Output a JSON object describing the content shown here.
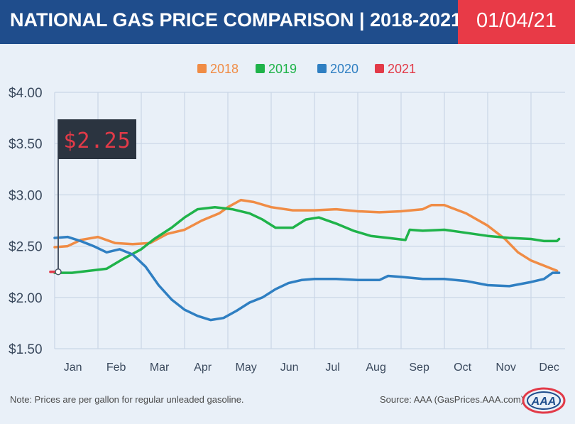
{
  "header": {
    "title": "NATIONAL GAS PRICE COMPARISON | 2018-2021",
    "date": "01/04/21"
  },
  "footer": {
    "note": "Note: Prices are per gallon for regular unleaded gasoline.",
    "source": "Source: AAA (GasPrices.AAA.com)",
    "logo_text": "AAA"
  },
  "colors": {
    "title_bg": "#1f4d8c",
    "date_bg": "#e83a47",
    "panel_bg": "#e9f0f8",
    "2018": "#f08c45",
    "2019": "#1fb34a",
    "2020": "#2f7fc2",
    "2021": "#e23a48"
  },
  "chart_data": {
    "type": "line",
    "y_ticks": [
      "$4.00",
      "$3.50",
      "$3.00",
      "$2.50",
      "$2.00",
      "$1.50"
    ],
    "ylim": [
      1.5,
      4.0
    ],
    "months": [
      "Jan",
      "Feb",
      "Mar",
      "Apr",
      "May",
      "Jun",
      "Jul",
      "Aug",
      "Sep",
      "Oct",
      "Nov",
      "Dec"
    ],
    "grid": true,
    "legend": "top-center",
    "callout": "$2.25",
    "series": [
      {
        "name": "2018",
        "color": "#f08c45",
        "points": [
          [
            0,
            2.49
          ],
          [
            0.3,
            2.5
          ],
          [
            0.6,
            2.56
          ],
          [
            1.0,
            2.59
          ],
          [
            1.4,
            2.53
          ],
          [
            1.8,
            2.52
          ],
          [
            2.2,
            2.53
          ],
          [
            2.6,
            2.62
          ],
          [
            3.0,
            2.66
          ],
          [
            3.4,
            2.75
          ],
          [
            3.8,
            2.82
          ],
          [
            4.0,
            2.88
          ],
          [
            4.3,
            2.95
          ],
          [
            4.6,
            2.93
          ],
          [
            5.0,
            2.88
          ],
          [
            5.5,
            2.85
          ],
          [
            6.0,
            2.85
          ],
          [
            6.5,
            2.86
          ],
          [
            7.0,
            2.84
          ],
          [
            7.5,
            2.83
          ],
          [
            8.0,
            2.84
          ],
          [
            8.5,
            2.86
          ],
          [
            8.7,
            2.9
          ],
          [
            9.0,
            2.9
          ],
          [
            9.5,
            2.82
          ],
          [
            10.0,
            2.7
          ],
          [
            10.4,
            2.57
          ],
          [
            10.7,
            2.44
          ],
          [
            11.0,
            2.36
          ],
          [
            11.3,
            2.31
          ],
          [
            11.6,
            2.26
          ]
        ]
      },
      {
        "name": "2019",
        "color": "#1fb34a",
        "points": [
          [
            0,
            2.24
          ],
          [
            0.4,
            2.24
          ],
          [
            0.8,
            2.26
          ],
          [
            1.2,
            2.28
          ],
          [
            1.6,
            2.38
          ],
          [
            2.0,
            2.47
          ],
          [
            2.3,
            2.57
          ],
          [
            2.7,
            2.68
          ],
          [
            3.0,
            2.78
          ],
          [
            3.3,
            2.86
          ],
          [
            3.7,
            2.88
          ],
          [
            4.1,
            2.86
          ],
          [
            4.5,
            2.82
          ],
          [
            4.8,
            2.76
          ],
          [
            5.1,
            2.68
          ],
          [
            5.5,
            2.68
          ],
          [
            5.8,
            2.76
          ],
          [
            6.1,
            2.78
          ],
          [
            6.5,
            2.72
          ],
          [
            6.9,
            2.65
          ],
          [
            7.3,
            2.6
          ],
          [
            7.7,
            2.58
          ],
          [
            8.1,
            2.56
          ],
          [
            8.2,
            2.66
          ],
          [
            8.5,
            2.65
          ],
          [
            9.0,
            2.66
          ],
          [
            9.5,
            2.63
          ],
          [
            10.0,
            2.6
          ],
          [
            10.5,
            2.58
          ],
          [
            11.0,
            2.57
          ],
          [
            11.3,
            2.55
          ],
          [
            11.6,
            2.55
          ],
          [
            11.65,
            2.57
          ]
        ]
      },
      {
        "name": "2020",
        "color": "#2f7fc2",
        "points": [
          [
            0,
            2.58
          ],
          [
            0.3,
            2.59
          ],
          [
            0.6,
            2.55
          ],
          [
            0.9,
            2.5
          ],
          [
            1.2,
            2.44
          ],
          [
            1.5,
            2.47
          ],
          [
            1.8,
            2.42
          ],
          [
            2.1,
            2.3
          ],
          [
            2.4,
            2.12
          ],
          [
            2.7,
            1.98
          ],
          [
            3.0,
            1.88
          ],
          [
            3.3,
            1.82
          ],
          [
            3.6,
            1.78
          ],
          [
            3.9,
            1.8
          ],
          [
            4.2,
            1.87
          ],
          [
            4.5,
            1.95
          ],
          [
            4.8,
            2.0
          ],
          [
            5.1,
            2.08
          ],
          [
            5.4,
            2.14
          ],
          [
            5.7,
            2.17
          ],
          [
            6.0,
            2.18
          ],
          [
            6.5,
            2.18
          ],
          [
            7.0,
            2.17
          ],
          [
            7.5,
            2.17
          ],
          [
            7.7,
            2.21
          ],
          [
            8.0,
            2.2
          ],
          [
            8.5,
            2.18
          ],
          [
            9.0,
            2.18
          ],
          [
            9.5,
            2.16
          ],
          [
            10.0,
            2.12
          ],
          [
            10.5,
            2.11
          ],
          [
            11.0,
            2.15
          ],
          [
            11.3,
            2.18
          ],
          [
            11.5,
            2.24
          ],
          [
            11.65,
            2.24
          ]
        ]
      },
      {
        "name": "2021",
        "color": "#e23a48",
        "points": [
          [
            -0.1,
            2.25
          ],
          [
            0.0,
            2.25
          ]
        ]
      }
    ]
  }
}
